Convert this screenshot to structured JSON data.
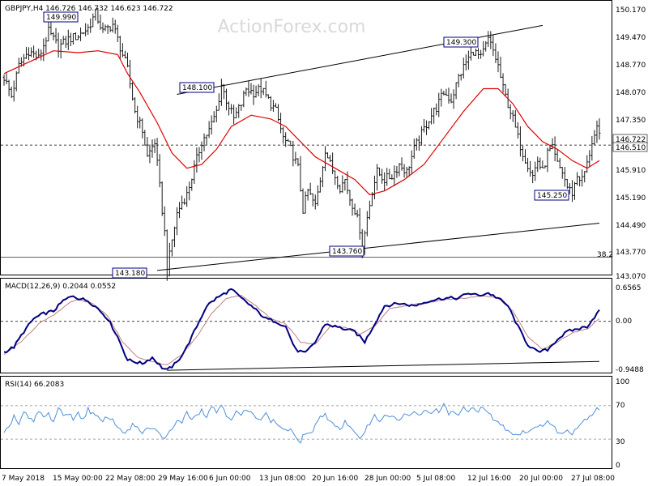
{
  "watermark": "ActionForex.com",
  "main_panel": {
    "title": "GBPJPY,H4  146.726 146.732 146.623 146.722",
    "yticks": [
      "150.170",
      "149.470",
      "148.770",
      "148.070",
      "147.350",
      "146.722",
      "146.510",
      "145.910",
      "145.190",
      "144.490",
      "143.770",
      "143.070"
    ],
    "price_labels": [
      "149.990",
      "149.300",
      "148.100",
      "145.250",
      "143.760",
      "143.180"
    ],
    "fib_label": "38.2"
  },
  "macd_panel": {
    "title": "MACD(12,26,9) 0.2044 0.0552",
    "yticks": [
      "0.6565",
      "0.00",
      "-0.9488"
    ]
  },
  "rsi_panel": {
    "title": "RSI(14) 66.2083",
    "yticks": [
      "100",
      "70",
      "30",
      "0"
    ]
  },
  "x_axis": {
    "labels": [
      "7 May 2018",
      "15 May 00:00",
      "22 May 08:00",
      "29 May 16:00",
      "6 Jun 00:00",
      "13 Jun 08:00",
      "20 Jun 16:00",
      "28 Jun 00:00",
      "5 Jul 08:00",
      "12 Jul 16:00",
      "20 Jul 00:00",
      "27 Jul 08:00"
    ]
  },
  "colors": {
    "price_bars": "#1a1a1a",
    "ma_line": "#e00000",
    "macd_line": "#000080",
    "macd_signal": "#c08080",
    "rsi_line": "#4f8fd8",
    "label_border": "#000080",
    "trendline": "#000000"
  },
  "chart_data": {
    "type": "candlestick",
    "title": "GBPJPY,H4  146.726 146.732 146.623 146.722",
    "x_labels": [
      "7 May 2018",
      "15 May 00:00",
      "22 May 08:00",
      "29 May 16:00",
      "6 Jun 00:00",
      "13 Jun 08:00",
      "20 Jun 16:00",
      "28 Jun 00:00",
      "5 Jul 08:00",
      "12 Jul 16:00",
      "20 Jul 00:00",
      "27 Jul 08:00"
    ],
    "price_ylim": [
      143.07,
      150.17
    ],
    "price_path": [
      [
        0,
        148.3
      ],
      [
        3,
        147.8
      ],
      [
        6,
        148.6
      ],
      [
        10,
        149.0
      ],
      [
        14,
        148.8
      ],
      [
        18,
        149.5
      ],
      [
        22,
        149.1
      ],
      [
        26,
        149.3
      ],
      [
        30,
        149.4
      ],
      [
        34,
        149.6
      ],
      [
        37,
        149.99
      ],
      [
        40,
        149.5
      ],
      [
        44,
        149.7
      ],
      [
        47,
        149.1
      ],
      [
        50,
        148.5
      ],
      [
        53,
        147.4
      ],
      [
        56,
        146.9
      ],
      [
        58,
        146.2
      ],
      [
        61,
        146.6
      ],
      [
        63,
        145.4
      ],
      [
        65,
        144.2
      ],
      [
        66,
        143.18
      ],
      [
        68,
        144.0
      ],
      [
        70,
        144.7
      ],
      [
        72,
        145.0
      ],
      [
        74,
        145.2
      ],
      [
        77,
        145.9
      ],
      [
        80,
        146.6
      ],
      [
        83,
        146.9
      ],
      [
        86,
        147.4
      ],
      [
        88,
        148.1
      ],
      [
        90,
        147.7
      ],
      [
        93,
        147.2
      ],
      [
        96,
        147.6
      ],
      [
        98,
        148.0
      ],
      [
        101,
        147.9
      ],
      [
        104,
        148.0
      ],
      [
        107,
        147.7
      ],
      [
        110,
        147.4
      ],
      [
        113,
        146.7
      ],
      [
        116,
        146.4
      ],
      [
        119,
        145.9
      ],
      [
        121,
        144.8
      ],
      [
        123,
        145.3
      ],
      [
        126,
        144.9
      ],
      [
        128,
        145.6
      ],
      [
        130,
        146.4
      ],
      [
        132,
        146.0
      ],
      [
        134,
        145.7
      ],
      [
        136,
        145.4
      ],
      [
        138,
        145.6
      ],
      [
        140,
        145.1
      ],
      [
        142,
        144.8
      ],
      [
        144,
        144.3
      ],
      [
        145,
        143.76
      ],
      [
        147,
        144.6
      ],
      [
        149,
        145.3
      ],
      [
        151,
        145.8
      ],
      [
        154,
        145.6
      ],
      [
        157,
        145.7
      ],
      [
        160,
        146.0
      ],
      [
        163,
        145.8
      ],
      [
        166,
        146.4
      ],
      [
        169,
        146.8
      ],
      [
        172,
        147.2
      ],
      [
        175,
        147.5
      ],
      [
        178,
        147.9
      ],
      [
        181,
        147.7
      ],
      [
        184,
        148.3
      ],
      [
        187,
        148.7
      ],
      [
        190,
        149.0
      ],
      [
        193,
        148.8
      ],
      [
        196,
        149.3
      ],
      [
        198,
        149.0
      ],
      [
        200,
        148.6
      ],
      [
        202,
        148.0
      ],
      [
        204,
        147.6
      ],
      [
        206,
        147.2
      ],
      [
        208,
        146.7
      ],
      [
        210,
        146.3
      ],
      [
        212,
        146.0
      ],
      [
        214,
        145.7
      ],
      [
        216,
        146.1
      ],
      [
        218,
        145.8
      ],
      [
        220,
        146.3
      ],
      [
        222,
        146.4
      ],
      [
        224,
        146.0
      ],
      [
        226,
        145.8
      ],
      [
        228,
        145.4
      ],
      [
        230,
        145.25
      ],
      [
        232,
        145.7
      ],
      [
        234,
        145.6
      ],
      [
        236,
        146.0
      ],
      [
        238,
        146.6
      ],
      [
        240,
        146.9
      ],
      [
        241,
        146.722
      ]
    ],
    "ma_path": [
      [
        0,
        148.4
      ],
      [
        10,
        148.7
      ],
      [
        20,
        149.0
      ],
      [
        30,
        148.95
      ],
      [
        38,
        149.0
      ],
      [
        46,
        148.9
      ],
      [
        50,
        148.4
      ],
      [
        55,
        147.9
      ],
      [
        62,
        147.1
      ],
      [
        68,
        146.3
      ],
      [
        74,
        145.9
      ],
      [
        80,
        146.0
      ],
      [
        86,
        146.4
      ],
      [
        92,
        147.0
      ],
      [
        100,
        147.3
      ],
      [
        108,
        147.2
      ],
      [
        114,
        147.0
      ],
      [
        120,
        146.6
      ],
      [
        126,
        146.2
      ],
      [
        134,
        145.9
      ],
      [
        142,
        145.6
      ],
      [
        148,
        145.2
      ],
      [
        154,
        145.3
      ],
      [
        162,
        145.6
      ],
      [
        170,
        146.0
      ],
      [
        178,
        146.7
      ],
      [
        186,
        147.4
      ],
      [
        194,
        148.0
      ],
      [
        200,
        148.0
      ],
      [
        206,
        147.6
      ],
      [
        212,
        147.0
      ],
      [
        218,
        146.6
      ],
      [
        224,
        146.4
      ],
      [
        230,
        146.1
      ],
      [
        236,
        145.9
      ],
      [
        241,
        146.1
      ]
    ],
    "trendlines": [
      {
        "name": "upper",
        "from": [
          70,
          147.85
        ],
        "to": [
          218,
          149.67
        ]
      },
      {
        "name": "lower",
        "from": [
          62,
          143.2
        ],
        "to": [
          241,
          144.45
        ]
      }
    ],
    "fib_382_level": 143.55,
    "macd_ylim": [
      -0.9488,
      0.6565
    ],
    "macd_path": [
      [
        0,
        -0.6
      ],
      [
        4,
        -0.5
      ],
      [
        8,
        -0.2
      ],
      [
        12,
        0.05
      ],
      [
        16,
        0.15
      ],
      [
        20,
        0.2
      ],
      [
        24,
        0.4
      ],
      [
        28,
        0.5
      ],
      [
        30,
        0.45
      ],
      [
        34,
        0.4
      ],
      [
        38,
        0.25
      ],
      [
        42,
        0.05
      ],
      [
        46,
        -0.3
      ],
      [
        50,
        -0.75
      ],
      [
        56,
        -0.82
      ],
      [
        60,
        -0.7
      ],
      [
        64,
        -0.9
      ],
      [
        66,
        -0.95
      ],
      [
        70,
        -0.8
      ],
      [
        74,
        -0.5
      ],
      [
        78,
        -0.1
      ],
      [
        82,
        0.3
      ],
      [
        86,
        0.45
      ],
      [
        92,
        0.62
      ],
      [
        96,
        0.45
      ],
      [
        100,
        0.3
      ],
      [
        106,
        0.05
      ],
      [
        110,
        0.0
      ],
      [
        114,
        -0.1
      ],
      [
        118,
        -0.55
      ],
      [
        122,
        -0.62
      ],
      [
        126,
        -0.4
      ],
      [
        130,
        -0.05
      ],
      [
        134,
        -0.1
      ],
      [
        138,
        -0.15
      ],
      [
        142,
        -0.2
      ],
      [
        146,
        -0.4
      ],
      [
        150,
        -0.05
      ],
      [
        154,
        0.3
      ],
      [
        160,
        0.35
      ],
      [
        166,
        0.3
      ],
      [
        172,
        0.4
      ],
      [
        178,
        0.45
      ],
      [
        184,
        0.45
      ],
      [
        188,
        0.55
      ],
      [
        192,
        0.5
      ],
      [
        196,
        0.55
      ],
      [
        200,
        0.45
      ],
      [
        204,
        0.3
      ],
      [
        208,
        -0.1
      ],
      [
        212,
        -0.45
      ],
      [
        216,
        -0.6
      ],
      [
        220,
        -0.55
      ],
      [
        224,
        -0.35
      ],
      [
        228,
        -0.2
      ],
      [
        232,
        -0.15
      ],
      [
        236,
        -0.1
      ],
      [
        240,
        0.15
      ],
      [
        241,
        0.2044
      ]
    ],
    "macd_signal_path": [
      [
        0,
        -0.65
      ],
      [
        8,
        -0.35
      ],
      [
        14,
        -0.05
      ],
      [
        20,
        0.12
      ],
      [
        26,
        0.35
      ],
      [
        30,
        0.42
      ],
      [
        36,
        0.35
      ],
      [
        42,
        0.1
      ],
      [
        48,
        -0.4
      ],
      [
        54,
        -0.7
      ],
      [
        60,
        -0.78
      ],
      [
        66,
        -0.85
      ],
      [
        72,
        -0.65
      ],
      [
        78,
        -0.3
      ],
      [
        84,
        0.15
      ],
      [
        90,
        0.45
      ],
      [
        96,
        0.5
      ],
      [
        102,
        0.3
      ],
      [
        108,
        0.05
      ],
      [
        114,
        -0.05
      ],
      [
        120,
        -0.4
      ],
      [
        126,
        -0.45
      ],
      [
        132,
        -0.1
      ],
      [
        138,
        -0.12
      ],
      [
        144,
        -0.25
      ],
      [
        150,
        -0.1
      ],
      [
        156,
        0.25
      ],
      [
        162,
        0.3
      ],
      [
        170,
        0.35
      ],
      [
        178,
        0.42
      ],
      [
        186,
        0.45
      ],
      [
        194,
        0.5
      ],
      [
        200,
        0.45
      ],
      [
        206,
        0.2
      ],
      [
        212,
        -0.3
      ],
      [
        218,
        -0.55
      ],
      [
        224,
        -0.4
      ],
      [
        230,
        -0.22
      ],
      [
        236,
        -0.15
      ],
      [
        241,
        0.0552
      ]
    ],
    "macd_trendline": {
      "from": [
        66,
        -0.95
      ],
      "to": [
        241,
        -0.78
      ]
    },
    "rsi_ylim": [
      0,
      100
    ],
    "rsi_path": [
      [
        0,
        35
      ],
      [
        2,
        45
      ],
      [
        4,
        58
      ],
      [
        6,
        48
      ],
      [
        8,
        62
      ],
      [
        10,
        55
      ],
      [
        12,
        50
      ],
      [
        14,
        64
      ],
      [
        16,
        56
      ],
      [
        18,
        60
      ],
      [
        20,
        52
      ],
      [
        22,
        66
      ],
      [
        24,
        58
      ],
      [
        26,
        62
      ],
      [
        28,
        55
      ],
      [
        30,
        60
      ],
      [
        32,
        54
      ],
      [
        34,
        66
      ],
      [
        36,
        60
      ],
      [
        38,
        55
      ],
      [
        40,
        50
      ],
      [
        42,
        58
      ],
      [
        44,
        52
      ],
      [
        46,
        45
      ],
      [
        48,
        40
      ],
      [
        50,
        38
      ],
      [
        52,
        48
      ],
      [
        54,
        42
      ],
      [
        56,
        35
      ],
      [
        58,
        45
      ],
      [
        60,
        40
      ],
      [
        62,
        42
      ],
      [
        64,
        30
      ],
      [
        66,
        35
      ],
      [
        68,
        40
      ],
      [
        70,
        55
      ],
      [
        72,
        50
      ],
      [
        74,
        62
      ],
      [
        76,
        56
      ],
      [
        78,
        60
      ],
      [
        80,
        65
      ],
      [
        82,
        58
      ],
      [
        84,
        70
      ],
      [
        86,
        62
      ],
      [
        88,
        72
      ],
      [
        90,
        60
      ],
      [
        92,
        55
      ],
      [
        94,
        62
      ],
      [
        96,
        58
      ],
      [
        98,
        65
      ],
      [
        100,
        60
      ],
      [
        102,
        58
      ],
      [
        104,
        55
      ],
      [
        106,
        60
      ],
      [
        108,
        52
      ],
      [
        110,
        50
      ],
      [
        112,
        45
      ],
      [
        114,
        40
      ],
      [
        116,
        42
      ],
      [
        118,
        30
      ],
      [
        120,
        28
      ],
      [
        122,
        38
      ],
      [
        124,
        36
      ],
      [
        126,
        45
      ],
      [
        128,
        55
      ],
      [
        130,
        62
      ],
      [
        132,
        50
      ],
      [
        134,
        48
      ],
      [
        136,
        42
      ],
      [
        138,
        50
      ],
      [
        140,
        44
      ],
      [
        142,
        35
      ],
      [
        144,
        32
      ],
      [
        146,
        40
      ],
      [
        148,
        50
      ],
      [
        150,
        58
      ],
      [
        152,
        52
      ],
      [
        154,
        60
      ],
      [
        156,
        54
      ],
      [
        158,
        58
      ],
      [
        160,
        52
      ],
      [
        162,
        60
      ],
      [
        164,
        56
      ],
      [
        166,
        62
      ],
      [
        168,
        58
      ],
      [
        170,
        64
      ],
      [
        172,
        60
      ],
      [
        174,
        66
      ],
      [
        176,
        62
      ],
      [
        178,
        70
      ],
      [
        180,
        60
      ],
      [
        182,
        64
      ],
      [
        184,
        58
      ],
      [
        186,
        66
      ],
      [
        188,
        62
      ],
      [
        190,
        70
      ],
      [
        192,
        64
      ],
      [
        194,
        68
      ],
      [
        196,
        60
      ],
      [
        198,
        55
      ],
      [
        200,
        50
      ],
      [
        202,
        45
      ],
      [
        204,
        40
      ],
      [
        206,
        38
      ],
      [
        208,
        35
      ],
      [
        210,
        40
      ],
      [
        212,
        38
      ],
      [
        214,
        45
      ],
      [
        216,
        42
      ],
      [
        218,
        48
      ],
      [
        220,
        52
      ],
      [
        222,
        45
      ],
      [
        224,
        40
      ],
      [
        226,
        35
      ],
      [
        228,
        42
      ],
      [
        230,
        38
      ],
      [
        232,
        45
      ],
      [
        234,
        50
      ],
      [
        236,
        56
      ],
      [
        238,
        60
      ],
      [
        240,
        68
      ],
      [
        241,
        66.2083
      ]
    ]
  }
}
